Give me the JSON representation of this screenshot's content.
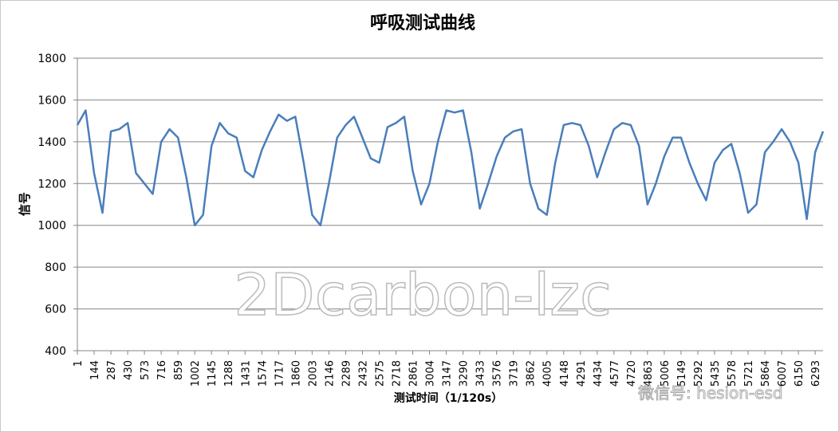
{
  "chart_data": {
    "type": "line",
    "title": "呼吸测试曲线",
    "x_label": "测试时间（1/120s）",
    "y_label": "信号",
    "annotations": [
      "2Dcarbon-lzc",
      "微信号: hesion-esd"
    ],
    "x": [
      1,
      72,
      144,
      215,
      287,
      358,
      430,
      501,
      573,
      644,
      716,
      787,
      859,
      930,
      1002,
      1073,
      1145,
      1216,
      1288,
      1359,
      1431,
      1502,
      1574,
      1645,
      1717,
      1788,
      1860,
      1931,
      2003,
      2074,
      2146,
      2217,
      2289,
      2360,
      2432,
      2503,
      2575,
      2646,
      2718,
      2789,
      2861,
      2932,
      3004,
      3075,
      3147,
      3218,
      3290,
      3361,
      3433,
      3504,
      3576,
      3647,
      3719,
      3790,
      3862,
      3933,
      4005,
      4076,
      4148,
      4219,
      4291,
      4362,
      4434,
      4505,
      4577,
      4648,
      4720,
      4791,
      4863,
      4934,
      5006,
      5077,
      5149,
      5220,
      5292,
      5363,
      5435,
      5506,
      5578,
      5649,
      5721,
      5792,
      5864,
      5935,
      6007,
      6078,
      6150,
      6221,
      6293,
      6360
    ],
    "series": [
      {
        "name": "信号",
        "color": "#4a7ebb",
        "values": [
          1480,
          1550,
          1250,
          1060,
          1450,
          1460,
          1490,
          1250,
          1200,
          1150,
          1400,
          1460,
          1420,
          1230,
          1000,
          1050,
          1380,
          1490,
          1440,
          1420,
          1260,
          1230,
          1360,
          1450,
          1530,
          1500,
          1520,
          1300,
          1050,
          1000,
          1200,
          1420,
          1480,
          1520,
          1420,
          1320,
          1300,
          1470,
          1490,
          1520,
          1260,
          1100,
          1200,
          1400,
          1550,
          1540,
          1550,
          1350,
          1080,
          1200,
          1330,
          1420,
          1450,
          1460,
          1200,
          1080,
          1050,
          1300,
          1480,
          1490,
          1480,
          1380,
          1230,
          1350,
          1460,
          1490,
          1480,
          1380,
          1100,
          1200,
          1330,
          1420,
          1420,
          1300,
          1200,
          1120,
          1300,
          1360,
          1390,
          1250,
          1060,
          1100,
          1350,
          1400,
          1460,
          1400,
          1300,
          1030,
          1350,
          1450
        ]
      }
    ],
    "xlim": [
      1,
      6360
    ],
    "xticks": [
      1,
      144,
      287,
      430,
      573,
      716,
      859,
      1002,
      1145,
      1288,
      1431,
      1574,
      1717,
      1860,
      2003,
      2146,
      2289,
      2432,
      2575,
      2718,
      2861,
      3004,
      3147,
      3290,
      3433,
      3576,
      3719,
      3862,
      4005,
      4148,
      4291,
      4434,
      4577,
      4720,
      4863,
      5006,
      5149,
      5292,
      5435,
      5578,
      5721,
      5864,
      6007,
      6150,
      6293
    ],
    "ylim": [
      400,
      1800
    ],
    "yticks": [
      400,
      600,
      800,
      1000,
      1200,
      1400,
      1600,
      1800
    ],
    "grid": true
  }
}
